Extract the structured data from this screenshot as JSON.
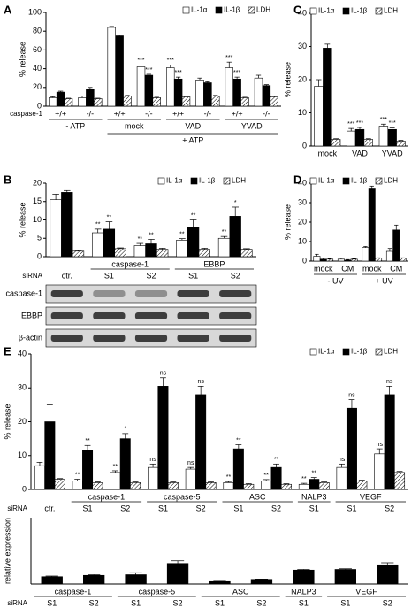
{
  "chart_data": [
    {
      "type": "bar",
      "panel": "A",
      "y_label": "% release",
      "ylim": [
        0,
        100
      ],
      "yticks": [
        0,
        20,
        40,
        60,
        80,
        100
      ],
      "legend": true,
      "row_label": "caspase-1",
      "group_position": "below",
      "categories": [
        "+/+",
        "-/-",
        "+/+",
        "-/-",
        "+/+",
        "-/-",
        "+/+",
        "-/-"
      ],
      "groups": [
        {
          "label": "- ATP",
          "start": 0,
          "end": 1,
          "level": 0
        },
        {
          "label": "mock",
          "start": 2,
          "end": 3,
          "level": 0
        },
        {
          "label": "VAD",
          "start": 4,
          "end": 5,
          "level": 0
        },
        {
          "label": "YVAD",
          "start": 6,
          "end": 7,
          "level": 0
        },
        {
          "label": "+ ATP",
          "start": 2,
          "end": 7,
          "level": 1
        }
      ],
      "series": [
        {
          "name": "IL-1α",
          "color": "#ffffff",
          "values": [
            9,
            9,
            84,
            42,
            41,
            28,
            41,
            30
          ],
          "errors": [
            1,
            2,
            1,
            2,
            3,
            2,
            6,
            3
          ]
        },
        {
          "name": "IL-1β",
          "color": "#000000",
          "values": [
            15,
            18,
            75,
            33,
            29,
            25,
            29,
            22
          ],
          "errors": [
            1,
            2,
            1,
            1,
            2,
            1,
            2,
            1
          ]
        },
        {
          "name": "LDH",
          "color": "#ffffff",
          "pattern": "hatch",
          "values": [
            8,
            8,
            11,
            9,
            10,
            11,
            9,
            10
          ],
          "errors": [
            0.5,
            0.5,
            0.5,
            0.5,
            0.5,
            0.5,
            0.5,
            0.5
          ]
        }
      ],
      "annotations": [
        {
          "text": "***",
          "series": 0,
          "index": 3
        },
        {
          "text": "***",
          "series": 1,
          "index": 3
        },
        {
          "text": "***",
          "series": 0,
          "index": 4
        },
        {
          "text": "***",
          "series": 1,
          "index": 4
        },
        {
          "text": "***",
          "series": 0,
          "index": 6
        },
        {
          "text": "***",
          "series": 1,
          "index": 6
        }
      ]
    },
    {
      "type": "bar",
      "panel": "C",
      "y_label": "% release",
      "ylim": [
        0,
        40
      ],
      "yticks": [
        0,
        10,
        20,
        30,
        40
      ],
      "legend": true,
      "categories": [
        "mock",
        "VAD",
        "YVAD"
      ],
      "series": [
        {
          "name": "IL-1α",
          "color": "#ffffff",
          "values": [
            18,
            4.5,
            6
          ],
          "errors": [
            2,
            0.8,
            0.6
          ]
        },
        {
          "name": "IL-1β",
          "color": "#000000",
          "values": [
            29.5,
            5,
            5
          ],
          "errors": [
            1.2,
            0.6,
            0.5
          ]
        },
        {
          "name": "LDH",
          "color": "#ffffff",
          "pattern": "hatch",
          "values": [
            2,
            2,
            1.5
          ],
          "errors": [
            0.2,
            0.2,
            0.2
          ]
        }
      ],
      "annotations": [
        {
          "text": "***",
          "series": 0,
          "index": 1
        },
        {
          "text": "***",
          "series": 1,
          "index": 1
        },
        {
          "text": "***",
          "series": 0,
          "index": 2
        },
        {
          "text": "***",
          "series": 1,
          "index": 2
        }
      ]
    },
    {
      "type": "bar",
      "panel": "B",
      "y_label": "% release",
      "ylim": [
        0,
        20
      ],
      "yticks": [
        0,
        5,
        10,
        15,
        20
      ],
      "legend": true,
      "row_label": "siRNA",
      "group_position": "above",
      "categories": [
        "ctr.",
        "S1",
        "S2",
        "S1",
        "S2"
      ],
      "groups": [
        {
          "label": "caspase-1",
          "start": 1,
          "end": 2,
          "level": 0
        },
        {
          "label": "EBBP",
          "start": 3,
          "end": 4,
          "level": 0
        }
      ],
      "series": [
        {
          "name": "IL-1α",
          "color": "#ffffff",
          "values": [
            15.5,
            6.5,
            3,
            4.5,
            5
          ],
          "errors": [
            1.5,
            1,
            0.6,
            0.4,
            0.5
          ]
        },
        {
          "name": "IL-1β",
          "color": "#000000",
          "values": [
            17.5,
            7.5,
            3.5,
            8,
            11
          ],
          "errors": [
            0.5,
            2,
            1.2,
            2,
            2.5
          ]
        },
        {
          "name": "LDH",
          "color": "#ffffff",
          "pattern": "hatch",
          "values": [
            1.5,
            2.2,
            2,
            2,
            2
          ],
          "errors": [
            0.2,
            0.2,
            0.3,
            0.3,
            0.2
          ]
        }
      ],
      "annotations": [
        {
          "text": "**",
          "series": 0,
          "index": 1
        },
        {
          "text": "**",
          "series": 1,
          "index": 1
        },
        {
          "text": "**",
          "series": 0,
          "index": 2
        },
        {
          "text": "**",
          "series": 1,
          "index": 2
        },
        {
          "text": "**",
          "series": 0,
          "index": 3
        },
        {
          "text": "**",
          "series": 1,
          "index": 3
        },
        {
          "text": "**",
          "series": 0,
          "index": 4
        },
        {
          "text": "*",
          "series": 1,
          "index": 4
        }
      ],
      "blot_rows": [
        "caspase-1",
        "EBBP",
        "β-actin"
      ]
    },
    {
      "type": "bar",
      "panel": "D",
      "y_label": "% release",
      "ylim": [
        0,
        40
      ],
      "yticks": [
        0,
        10,
        20,
        30,
        40
      ],
      "legend": true,
      "group_position": "below",
      "categories": [
        "mock",
        "CM",
        "mock",
        "CM"
      ],
      "groups": [
        {
          "label": "- UV",
          "start": 0,
          "end": 1,
          "level": 0
        },
        {
          "label": "+ UV",
          "start": 2,
          "end": 3,
          "level": 0
        }
      ],
      "series": [
        {
          "name": "IL-1α",
          "color": "#ffffff",
          "values": [
            2.5,
            1,
            7,
            5
          ],
          "errors": [
            1,
            0.5,
            0.5,
            1.5
          ]
        },
        {
          "name": "IL-1β",
          "color": "#000000",
          "values": [
            1,
            0.5,
            37.5,
            16
          ],
          "errors": [
            0.5,
            0.3,
            1,
            2.5
          ]
        },
        {
          "name": "LDH",
          "color": "#ffffff",
          "pattern": "hatch",
          "values": [
            1,
            1,
            1.5,
            1.5
          ],
          "errors": [
            0.2,
            0.2,
            0.2,
            0.2
          ]
        }
      ]
    },
    {
      "type": "bar",
      "panel": "E",
      "y_label": "% release",
      "ylim": [
        0,
        40
      ],
      "yticks": [
        0,
        10,
        20,
        30,
        40
      ],
      "legend": true,
      "row_label": "siRNA",
      "group_position": "above",
      "categories": [
        "ctr.",
        "S1",
        "S2",
        "S1",
        "S2",
        "S1",
        "S2",
        "S1",
        "S1",
        "S2"
      ],
      "groups": [
        {
          "label": "caspase-1",
          "start": 1,
          "end": 2,
          "level": 0
        },
        {
          "label": "caspase-5",
          "start": 3,
          "end": 4,
          "level": 0
        },
        {
          "label": "ASC",
          "start": 5,
          "end": 6,
          "level": 0
        },
        {
          "label": "NALP3",
          "start": 7,
          "end": 7,
          "level": 0
        },
        {
          "label": "VEGF",
          "start": 8,
          "end": 9,
          "level": 0
        }
      ],
      "series": [
        {
          "name": "IL-1α",
          "color": "#ffffff",
          "values": [
            7,
            2.5,
            5,
            6.5,
            6,
            2,
            2.5,
            1.5,
            6.5,
            10.5
          ],
          "errors": [
            1,
            0.5,
            0.5,
            1,
            0.5,
            0.3,
            0.4,
            0.3,
            1,
            1.5
          ]
        },
        {
          "name": "IL-1β",
          "color": "#000000",
          "values": [
            20,
            11.5,
            15,
            30.5,
            28,
            12,
            6.5,
            3,
            24,
            28
          ],
          "errors": [
            5,
            1.5,
            1.5,
            2.5,
            2.5,
            1.2,
            1,
            0.5,
            2.5,
            2.5
          ]
        },
        {
          "name": "LDH",
          "color": "#ffffff",
          "pattern": "hatch",
          "values": [
            3,
            2,
            2,
            2,
            2,
            1.5,
            1.5,
            2,
            2.5,
            5
          ],
          "errors": [
            0.2,
            0.2,
            0.2,
            0.2,
            0.2,
            0.2,
            0.2,
            0.2,
            0.2,
            0.3
          ]
        }
      ],
      "annotations": [
        {
          "text": "**",
          "series": 0,
          "index": 1
        },
        {
          "text": "**",
          "series": 1,
          "index": 1
        },
        {
          "text": "**",
          "series": 0,
          "index": 2
        },
        {
          "text": "*",
          "series": 1,
          "index": 2
        },
        {
          "text": "ns",
          "series": 0,
          "index": 3
        },
        {
          "text": "ns",
          "series": 1,
          "index": 3
        },
        {
          "text": "ns",
          "series": 0,
          "index": 4
        },
        {
          "text": "ns",
          "series": 1,
          "index": 4
        },
        {
          "text": "**",
          "series": 0,
          "index": 5
        },
        {
          "text": "**",
          "series": 1,
          "index": 5
        },
        {
          "text": "**",
          "series": 0,
          "index": 6
        },
        {
          "text": "**",
          "series": 1,
          "index": 6
        },
        {
          "text": "**",
          "series": 0,
          "index": 7
        },
        {
          "text": "**",
          "series": 1,
          "index": 7
        },
        {
          "text": "ns",
          "series": 0,
          "index": 8
        },
        {
          "text": "ns",
          "series": 1,
          "index": 8
        },
        {
          "text": "ns",
          "series": 0,
          "index": 9
        },
        {
          "text": "ns",
          "series": 1,
          "index": 9
        }
      ]
    },
    {
      "type": "bar",
      "y_label": "relative expression",
      "ylim": [
        0,
        1
      ],
      "row_label": "siRNA",
      "group_position": "above",
      "categories": [
        "S1",
        "S2",
        "S1",
        "S2",
        "S1",
        "S2",
        "S1",
        "S1",
        "S2"
      ],
      "groups": [
        {
          "label": "caspase-1",
          "start": 0,
          "end": 1,
          "level": 0
        },
        {
          "label": "caspase-5",
          "start": 2,
          "end": 3,
          "level": 0
        },
        {
          "label": "ASC",
          "start": 4,
          "end": 5,
          "level": 0
        },
        {
          "label": "NALP3",
          "start": 6,
          "end": 6,
          "level": 0
        },
        {
          "label": "VEGF",
          "start": 7,
          "end": 8,
          "level": 0
        }
      ],
      "color": "#000000",
      "values": [
        0.11,
        0.13,
        0.14,
        0.31,
        0.05,
        0.07,
        0.21,
        0.22,
        0.29
      ],
      "errors": [
        0.01,
        0.01,
        0.03,
        0.04,
        0.005,
        0.005,
        0.01,
        0.01,
        0.03
      ]
    }
  ]
}
